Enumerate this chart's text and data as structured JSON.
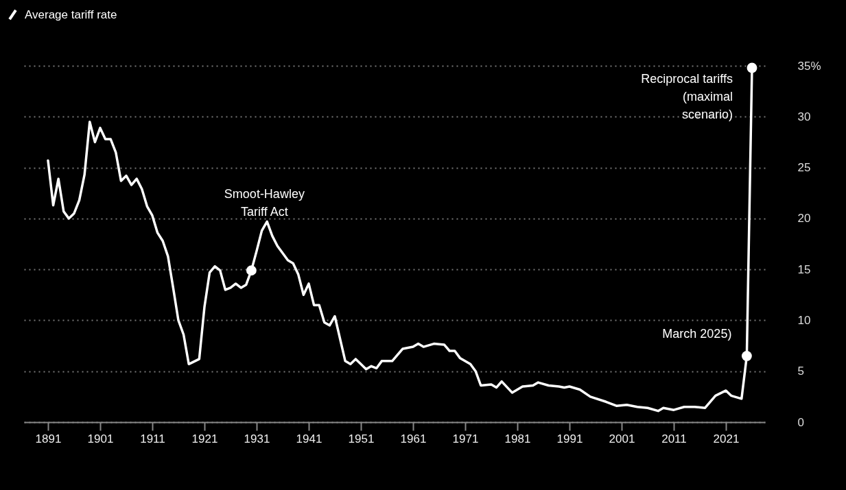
{
  "chart_data": {
    "type": "line",
    "x": [
      1891,
      1892,
      1893,
      1894,
      1895,
      1896,
      1897,
      1898,
      1899,
      1900,
      1901,
      1902,
      1903,
      1904,
      1905,
      1906,
      1907,
      1908,
      1909,
      1910,
      1911,
      1912,
      1913,
      1914,
      1915,
      1916,
      1917,
      1918,
      1920,
      1921,
      1922,
      1923,
      1924,
      1925,
      1926,
      1927,
      1928,
      1929,
      1930,
      1931,
      1932,
      1933,
      1934,
      1935,
      1937,
      1938,
      1939,
      1940,
      1941,
      1942,
      1943,
      1944,
      1945,
      1946,
      1948,
      1949,
      1950,
      1951,
      1952,
      1953,
      1954,
      1955,
      1957,
      1959,
      1961,
      1962,
      1963,
      1965,
      1967,
      1968,
      1969,
      1970,
      1972,
      1973,
      1974,
      1976,
      1977,
      1978,
      1980,
      1982,
      1984,
      1985,
      1987,
      1989,
      1990,
      1991,
      1993,
      1995,
      1998,
      2000,
      2002,
      2004,
      2006,
      2008,
      2009,
      2011,
      2013,
      2015,
      2017,
      2019,
      2021,
      2022,
      2024,
      2025,
      2026
    ],
    "series": [
      {
        "name": "Average tariff rate",
        "color": "#ffffff",
        "values": [
          25.7,
          21.3,
          23.9,
          20.7,
          20.0,
          20.5,
          21.8,
          24.3,
          29.5,
          27.5,
          28.9,
          27.8,
          27.8,
          26.5,
          23.7,
          24.2,
          23.3,
          23.9,
          22.9,
          21.2,
          20.3,
          18.6,
          17.8,
          16.3,
          13.2,
          10.0,
          8.6,
          5.7,
          6.2,
          11.3,
          14.7,
          15.3,
          14.9,
          13.0,
          13.2,
          13.6,
          13.2,
          13.5,
          14.9,
          16.8,
          18.8,
          19.7,
          18.3,
          17.3,
          15.9,
          15.6,
          14.5,
          12.5,
          13.6,
          11.5,
          11.5,
          9.8,
          9.5,
          10.4,
          6.0,
          5.7,
          6.2,
          5.7,
          5.2,
          5.5,
          5.3,
          6.0,
          6.0,
          7.2,
          7.4,
          7.7,
          7.4,
          7.7,
          7.6,
          7.0,
          7.0,
          6.3,
          5.7,
          5.0,
          3.6,
          3.7,
          3.4,
          4.0,
          2.9,
          3.5,
          3.6,
          3.9,
          3.6,
          3.5,
          3.4,
          3.5,
          3.2,
          2.5,
          2.0,
          1.6,
          1.7,
          1.5,
          1.4,
          1.1,
          1.4,
          1.2,
          1.5,
          1.5,
          1.4,
          2.6,
          3.1,
          2.6,
          2.3,
          6.5,
          34.8
        ]
      },
      {
        "type": "scatter",
        "color": "#ffffff",
        "x": [
          1930,
          2025,
          2026
        ],
        "values": [
          14.9,
          6.5,
          34.8
        ]
      }
    ],
    "xlim": [
      1886.4,
      2028.5
    ],
    "xticks": [
      1891,
      1901,
      1911,
      1921,
      1931,
      1941,
      1951,
      1961,
      1971,
      1981,
      1991,
      2001,
      2011,
      2021
    ],
    "ylim": [
      0,
      35
    ],
    "yticks": [
      0,
      5,
      10,
      15,
      20,
      25,
      30,
      {
        "value": 35,
        "label": "35%"
      }
    ],
    "grid": "y",
    "legend": "top left",
    "annotations": [
      {
        "text": "Smoot-Hawley\nTariff Act",
        "x": 1932.5,
        "y": 19.7
      },
      {
        "text": "Reciprocal tariffs\n(maximal\nscenario)",
        "x": 2026,
        "y": 34.8
      },
      {
        "text": "March 2025)",
        "x": 2025,
        "y": 6.5
      }
    ]
  }
}
